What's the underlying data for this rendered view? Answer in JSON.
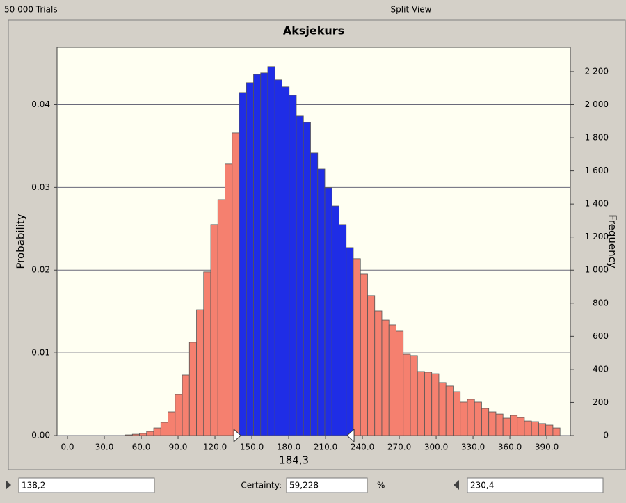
{
  "header": {
    "trials": "50 000 Trials",
    "view": "Split View"
  },
  "chart_data": {
    "type": "histogram",
    "title": "Aksjekurs",
    "ylabel": "Probability",
    "y2label": "Frequency",
    "bins": [
      47,
      52.8,
      58.6,
      64.4,
      70.2,
      76,
      81.8,
      87.6,
      93.4,
      99.2,
      105,
      110.8,
      116.6,
      122.4,
      128.2,
      134,
      139.8,
      145.6,
      151.4,
      157.2,
      163,
      168.8,
      174.6,
      180.4,
      186.2,
      192,
      197.8,
      203.6,
      209.4,
      215.2,
      221,
      226.8,
      232.6,
      238.4,
      244.2,
      250,
      255.8,
      261.6,
      267.4,
      273.2,
      279,
      284.8,
      290.6,
      296.4,
      302.2,
      308,
      313.8,
      319.6,
      325.4,
      331.2,
      337,
      342.8,
      348.6,
      354.4,
      360.2,
      366,
      371.8,
      377.6,
      383.4,
      389.2,
      395,
      400.8
    ],
    "values": [
      4,
      8,
      13,
      25,
      46,
      80,
      143,
      248,
      366,
      564,
      761,
      989,
      1275,
      1426,
      1641,
      1830,
      2074,
      2133,
      2183,
      2192,
      2230,
      2150,
      2108,
      2057,
      1931,
      1893,
      1708,
      1611,
      1498,
      1388,
      1275,
      1136,
      1069,
      976,
      846,
      753,
      698,
      669,
      631,
      492,
      484,
      387,
      383,
      374,
      320,
      299,
      265,
      202,
      219,
      202,
      164,
      143,
      130,
      105,
      122,
      109,
      88,
      84,
      72,
      63,
      46
    ],
    "axis": "y2",
    "colors": {
      "inside": "#1f2de6",
      "outside": "#f5806f"
    },
    "xlim": [
      -8.5,
      409.2
    ],
    "xticks": [
      {
        "value": 0,
        "label": "0.0"
      },
      {
        "value": 30,
        "label": "30.0"
      },
      {
        "value": 60,
        "label": "60.0"
      },
      {
        "value": 90,
        "label": "90.0"
      },
      {
        "value": 120,
        "label": "120.0"
      },
      {
        "value": 150,
        "label": "150.0"
      },
      {
        "value": 180,
        "label": "180.0"
      },
      {
        "value": 210,
        "label": "210.0"
      },
      {
        "value": 240,
        "label": "240.0"
      },
      {
        "value": 270,
        "label": "270.0"
      },
      {
        "value": 300,
        "label": "300.0"
      },
      {
        "value": 330,
        "label": "330.0"
      },
      {
        "value": 360,
        "label": "360.0"
      },
      {
        "value": 390,
        "label": "390.0"
      }
    ],
    "ylim": [
      0,
      0.04694
    ],
    "yticks": [
      {
        "value": 0,
        "label": "0.00"
      },
      0.01,
      0.02,
      0.03,
      0.04
    ],
    "y2lim": [
      0,
      2347
    ],
    "y2ticks": [
      0,
      200,
      400,
      600,
      800,
      {
        "value": 1000,
        "label": "1 000"
      },
      {
        "value": 1200,
        "label": "1 200"
      },
      {
        "value": 1400,
        "label": "1 400"
      },
      {
        "value": 1600,
        "label": "1 600"
      },
      {
        "value": 1800,
        "label": "1 800"
      },
      {
        "value": 2000,
        "label": "2 000"
      },
      {
        "value": 2200,
        "label": "2 200"
      }
    ],
    "grid": true,
    "mean": {
      "value": 184.3,
      "label": "184,3"
    },
    "lower": {
      "value": 138.2,
      "label": "138,2"
    },
    "upper": {
      "value": 230.4,
      "label": "230,4"
    },
    "certainty_label": "Certainty:",
    "certainty": {
      "value": 59.228,
      "label": "59,228"
    },
    "certainty_unit": "%"
  }
}
